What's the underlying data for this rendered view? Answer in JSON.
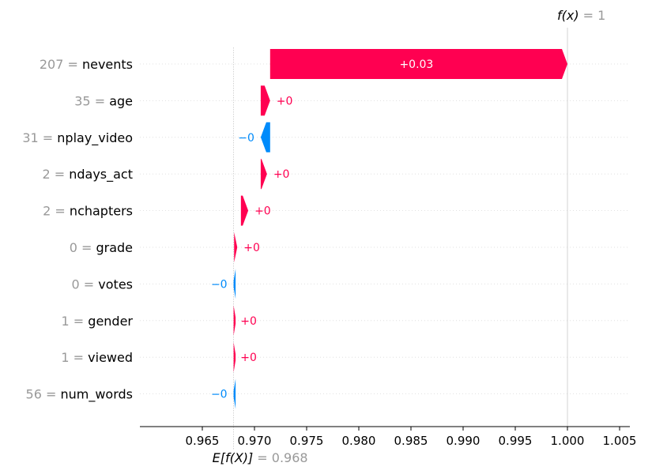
{
  "chart_data": {
    "type": "waterfall",
    "title": "",
    "xlabel": "",
    "ylabel": "",
    "xlim": [
      0.962,
      1.0055
    ],
    "x_ticks": [
      "0.965",
      "0.970",
      "0.975",
      "0.980",
      "0.985",
      "0.990",
      "0.995",
      "1.000",
      "1.005"
    ],
    "x_tick_values": [
      0.965,
      0.97,
      0.975,
      0.98,
      0.985,
      0.99,
      0.995,
      1.0,
      1.005
    ],
    "base_value": 0.968,
    "base_label": "E[f(X)]",
    "base_value_text": "= 0.968",
    "output_value": 1.0,
    "output_label": "f(x)",
    "output_value_text": "= 1",
    "colors": {
      "positive": "#ff0051",
      "negative": "#008bfb",
      "label_value": "#999999"
    },
    "features": [
      {
        "value": "207",
        "name": "nevents",
        "contribution": 0.0285,
        "start": 0.9715,
        "label": "+0.03"
      },
      {
        "value": "35",
        "name": "age",
        "contribution": 0.0009,
        "start": 0.9706,
        "label": "+0"
      },
      {
        "value": "31",
        "name": "nplay_video",
        "contribution": -0.0009,
        "start": 0.9715,
        "label": "−0"
      },
      {
        "value": "2",
        "name": "ndays_act",
        "contribution": 0.0006,
        "start": 0.9706,
        "label": "+0"
      },
      {
        "value": "2",
        "name": "nchapters",
        "contribution": 0.0007,
        "start": 0.9687,
        "label": "+0"
      },
      {
        "value": "0",
        "name": "grade",
        "contribution": 0.0003,
        "start": 0.96805,
        "label": "+0"
      },
      {
        "value": "0",
        "name": "votes",
        "contribution": -5e-05,
        "start": 0.96805,
        "label": "−0"
      },
      {
        "value": "1",
        "name": "gender",
        "contribution": 5e-05,
        "start": 0.968,
        "label": "+0"
      },
      {
        "value": "1",
        "name": "viewed",
        "contribution": 5e-05,
        "start": 0.968,
        "label": "+0"
      },
      {
        "value": "56",
        "name": "num_words",
        "contribution": -5e-05,
        "start": 0.96805,
        "label": "−0"
      }
    ]
  }
}
